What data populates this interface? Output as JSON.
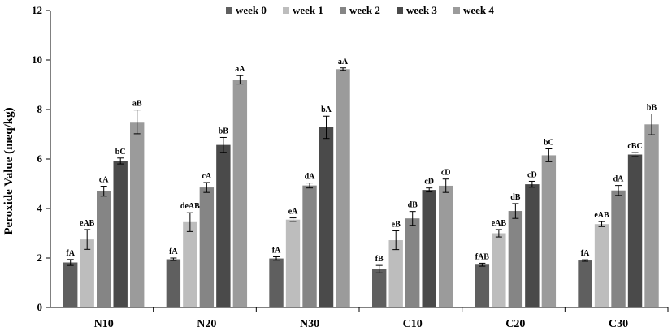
{
  "chart_data": {
    "type": "bar",
    "ylabel": "Peroxide Value (meq/kg)",
    "xlabel": "",
    "ylim": [
      0,
      12
    ],
    "yticks": [
      0,
      2,
      4,
      6,
      8,
      10,
      12
    ],
    "grid": false,
    "legend_position": "top",
    "categories": [
      "N10",
      "N20",
      "N30",
      "C10",
      "C20",
      "C30"
    ],
    "series": [
      {
        "name": "week 0",
        "color": "#5f5f5f",
        "values": [
          1.82,
          1.95,
          1.98,
          1.55,
          1.73,
          1.9
        ],
        "errors": [
          0.12,
          0.05,
          0.07,
          0.15,
          0.06,
          0.03
        ],
        "labels": [
          "fA",
          "fA",
          "fA",
          "fB",
          "fAB",
          "fA"
        ]
      },
      {
        "name": "week 1",
        "color": "#bdbdbd",
        "values": [
          2.75,
          3.45,
          3.55,
          2.72,
          3.0,
          3.37
        ],
        "errors": [
          0.4,
          0.38,
          0.07,
          0.38,
          0.15,
          0.1
        ],
        "labels": [
          "eAB",
          "deAB",
          "eA",
          "eB",
          "eAB",
          "eAB"
        ]
      },
      {
        "name": "week 2",
        "color": "#858585",
        "values": [
          4.7,
          4.85,
          4.93,
          3.6,
          3.9,
          4.73
        ],
        "errors": [
          0.2,
          0.2,
          0.1,
          0.28,
          0.3,
          0.2
        ],
        "labels": [
          "cA",
          "cA",
          "dA",
          "dB",
          "dB",
          "dA"
        ]
      },
      {
        "name": "week 3",
        "color": "#4a4a4a",
        "values": [
          5.92,
          6.57,
          7.28,
          4.75,
          4.98,
          6.18
        ],
        "errors": [
          0.12,
          0.3,
          0.45,
          0.08,
          0.12,
          0.08
        ],
        "labels": [
          "bC",
          "bB",
          "bA",
          "cD",
          "cD",
          "cBC"
        ]
      },
      {
        "name": "week 4",
        "color": "#9b9b9b",
        "values": [
          7.5,
          9.2,
          9.63,
          4.92,
          6.15,
          7.4
        ],
        "errors": [
          0.48,
          0.17,
          0.05,
          0.27,
          0.26,
          0.42
        ],
        "labels": [
          "aB",
          "aA",
          "aA",
          "cD",
          "bC",
          "bB"
        ]
      }
    ]
  }
}
